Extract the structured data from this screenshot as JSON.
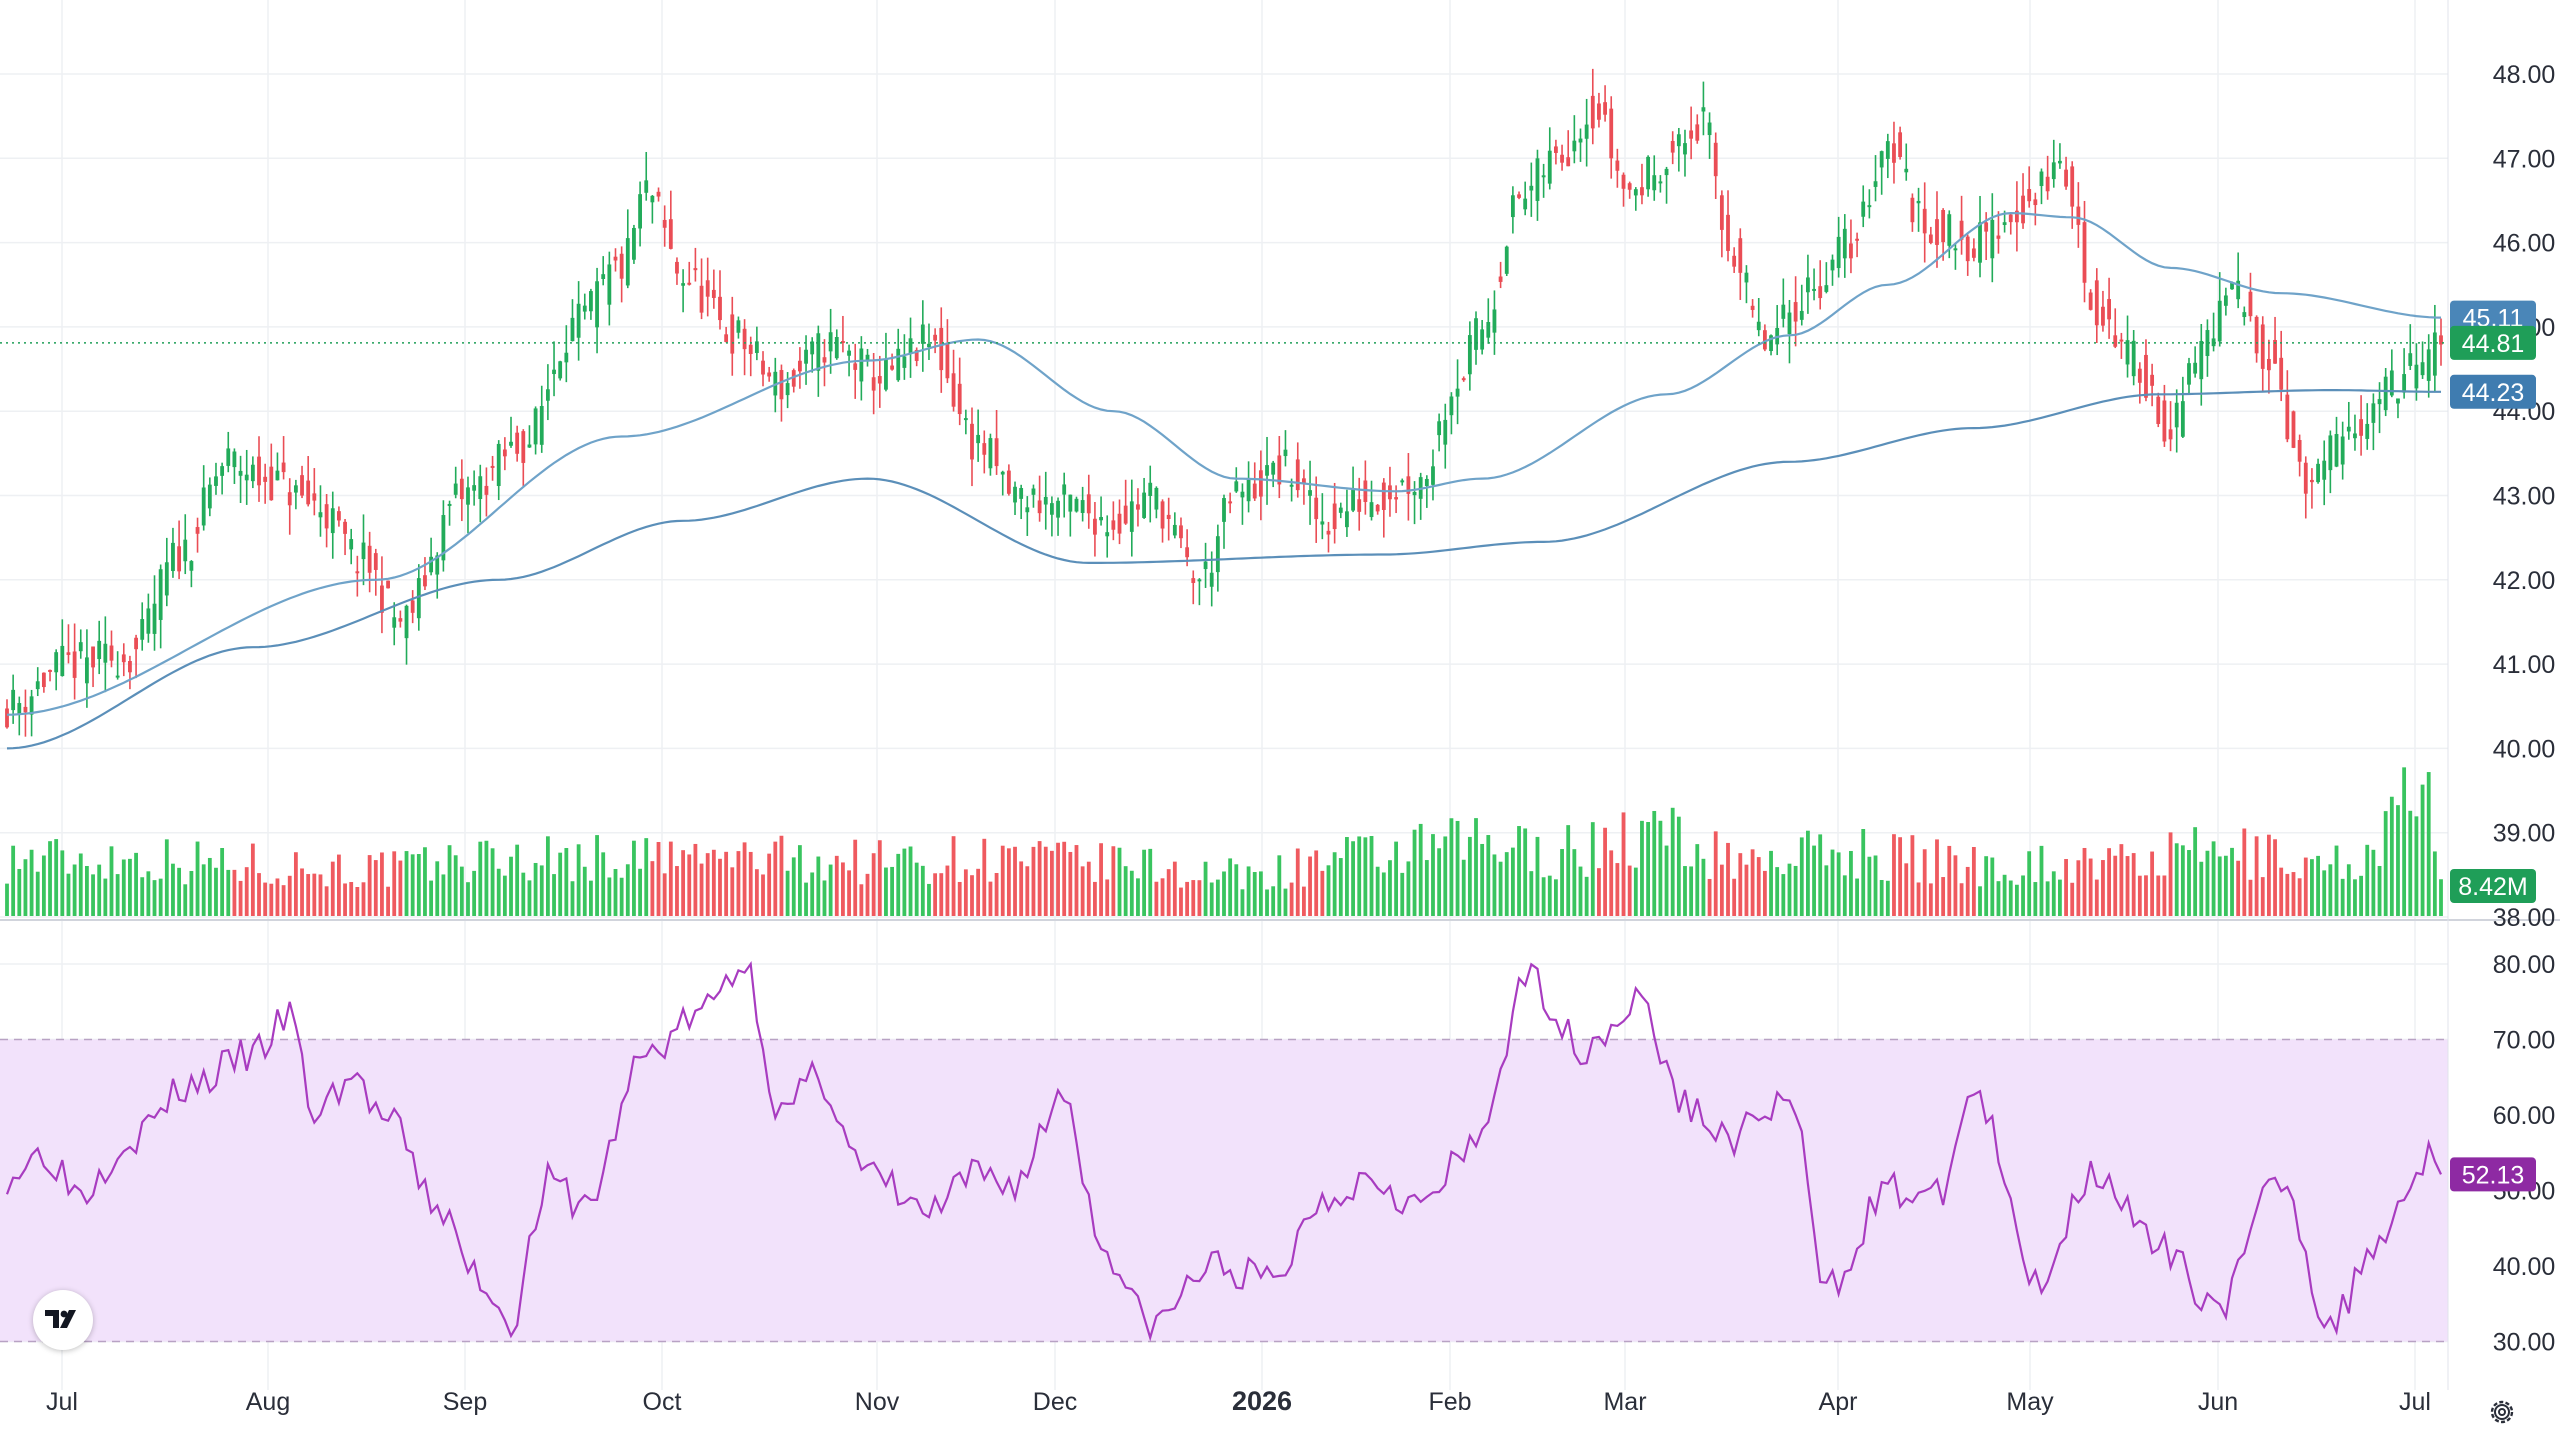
{
  "colors": {
    "up": "#22ab5a",
    "down": "#ea4d55",
    "ma_line": "#6fa3c9",
    "rsi_line": "#a83cc0",
    "rsi_band": "#f2e2fb",
    "grid": "#eef0f3",
    "axis_text": "#2a2e39",
    "last_price_badge": "#1f9e58",
    "ma_badge": "#4a86b8",
    "rsi_badge": "#8e2aa3"
  },
  "price_scale": {
    "ticks": [
      "48.00",
      "47.00",
      "46.00",
      "45.00",
      "44.00",
      "43.00",
      "42.00",
      "41.00",
      "40.00",
      "39.00",
      "38.00"
    ],
    "last_price": "44.81",
    "ma_short_value": "45.11",
    "ma_long_value": "44.23",
    "volume_label": "8.42M"
  },
  "rsi_scale": {
    "ticks": [
      "80.00",
      "70.00",
      "60.00",
      "50.00",
      "40.00",
      "30.00"
    ],
    "value_label": "52.13"
  },
  "time_axis": {
    "labels": [
      "Jul",
      "Aug",
      "Sep",
      "Oct",
      "Nov",
      "Dec",
      "2026",
      "Feb",
      "Mar",
      "Apr",
      "May",
      "Jun",
      "Jul"
    ]
  },
  "logo_icon": "tradingview-logo-icon",
  "settings_icon": "gear-icon",
  "chart_data": {
    "type": "candlestick",
    "series": [
      {
        "name": "price",
        "kind": "ohlc",
        "anchors": [
          [
            0,
            40.5
          ],
          [
            10,
            41.0
          ],
          [
            20,
            41.1
          ],
          [
            28,
            42.3
          ],
          [
            36,
            43.4
          ],
          [
            42,
            43.2
          ],
          [
            50,
            42.9
          ],
          [
            58,
            42.2
          ],
          [
            64,
            41.5
          ],
          [
            74,
            43.0
          ],
          [
            84,
            43.6
          ],
          [
            92,
            45.0
          ],
          [
            100,
            45.7
          ],
          [
            104,
            46.6
          ],
          [
            110,
            45.6
          ],
          [
            118,
            44.9
          ],
          [
            126,
            44.3
          ],
          [
            134,
            44.8
          ],
          [
            142,
            44.4
          ],
          [
            150,
            44.8
          ],
          [
            158,
            43.6
          ],
          [
            164,
            43.0
          ],
          [
            172,
            42.9
          ],
          [
            180,
            42.7
          ],
          [
            186,
            43.0
          ],
          [
            194,
            42.0
          ],
          [
            200,
            43.0
          ],
          [
            208,
            43.3
          ],
          [
            214,
            42.7
          ],
          [
            222,
            43.0
          ],
          [
            230,
            43.2
          ],
          [
            236,
            44.4
          ],
          [
            240,
            45.0
          ],
          [
            246,
            46.5
          ],
          [
            252,
            47.0
          ],
          [
            258,
            47.6
          ],
          [
            264,
            46.6
          ],
          [
            270,
            47.0
          ],
          [
            276,
            47.4
          ],
          [
            280,
            46.0
          ],
          [
            286,
            44.8
          ],
          [
            294,
            45.5
          ],
          [
            300,
            46.0
          ],
          [
            306,
            47.2
          ],
          [
            312,
            46.2
          ],
          [
            320,
            46.0
          ],
          [
            328,
            46.4
          ],
          [
            334,
            46.9
          ],
          [
            340,
            45.2
          ],
          [
            346,
            44.6
          ],
          [
            352,
            43.8
          ],
          [
            358,
            44.9
          ],
          [
            362,
            45.4
          ],
          [
            368,
            44.7
          ],
          [
            374,
            43.1
          ],
          [
            380,
            43.6
          ],
          [
            386,
            44.2
          ],
          [
            392,
            44.5
          ],
          [
            396,
            44.8
          ]
        ]
      },
      {
        "name": "ma_short",
        "kind": "line",
        "anchors": [
          [
            0,
            40.4
          ],
          [
            60,
            42.0
          ],
          [
            100,
            43.7
          ],
          [
            140,
            44.6
          ],
          [
            158,
            44.85
          ],
          [
            180,
            44.0
          ],
          [
            200,
            43.2
          ],
          [
            226,
            43.05
          ],
          [
            240,
            43.2
          ],
          [
            270,
            44.2
          ],
          [
            290,
            44.9
          ],
          [
            306,
            45.5
          ],
          [
            326,
            46.35
          ],
          [
            336,
            46.3
          ],
          [
            352,
            45.7
          ],
          [
            370,
            45.4
          ],
          [
            396,
            45.11
          ]
        ]
      },
      {
        "name": "ma_short_line",
        "kind": "line",
        "anchors": [
          [
            0,
            40.0
          ],
          [
            40,
            41.2
          ],
          [
            80,
            42.0
          ],
          [
            110,
            42.7
          ],
          [
            140,
            43.2
          ],
          [
            176,
            42.2
          ],
          [
            224,
            42.3
          ],
          [
            250,
            42.45
          ],
          [
            290,
            43.4
          ],
          [
            320,
            43.8
          ],
          [
            350,
            44.2
          ],
          [
            378,
            44.25
          ],
          [
            396,
            44.23
          ]
        ]
      },
      {
        "name": "volume",
        "kind": "bar",
        "anchors": [
          [
            0,
            1.0
          ],
          [
            20,
            1.0
          ],
          [
            40,
            0.9
          ],
          [
            60,
            0.8
          ],
          [
            80,
            1.0
          ],
          [
            100,
            1.0
          ],
          [
            120,
            1.0
          ],
          [
            140,
            0.95
          ],
          [
            160,
            1.0
          ],
          [
            180,
            0.9
          ],
          [
            200,
            0.7
          ],
          [
            220,
            1.0
          ],
          [
            240,
            1.25
          ],
          [
            250,
            1.1
          ],
          [
            270,
            1.4
          ],
          [
            280,
            1.0
          ],
          [
            300,
            1.1
          ],
          [
            320,
            0.9
          ],
          [
            340,
            0.9
          ],
          [
            360,
            1.1
          ],
          [
            380,
            0.9
          ],
          [
            394,
            2.1
          ],
          [
            396,
            0.65
          ]
        ]
      },
      {
        "name": "rsi",
        "kind": "line",
        "anchors": [
          [
            0,
            52
          ],
          [
            6,
            55
          ],
          [
            12,
            50
          ],
          [
            20,
            57
          ],
          [
            30,
            64
          ],
          [
            40,
            68
          ],
          [
            46,
            73
          ],
          [
            50,
            60
          ],
          [
            56,
            65
          ],
          [
            62,
            59
          ],
          [
            70,
            48
          ],
          [
            76,
            39
          ],
          [
            82,
            33
          ],
          [
            88,
            51
          ],
          [
            94,
            48
          ],
          [
            104,
            68
          ],
          [
            112,
            73
          ],
          [
            120,
            80
          ],
          [
            126,
            60
          ],
          [
            132,
            65
          ],
          [
            140,
            52
          ],
          [
            150,
            47
          ],
          [
            158,
            52
          ],
          [
            164,
            51
          ],
          [
            172,
            63
          ],
          [
            178,
            43
          ],
          [
            186,
            32
          ],
          [
            196,
            40
          ],
          [
            206,
            38
          ],
          [
            214,
            49
          ],
          [
            222,
            52
          ],
          [
            230,
            48
          ],
          [
            238,
            55
          ],
          [
            248,
            78
          ],
          [
            256,
            69
          ],
          [
            266,
            75
          ],
          [
            272,
            62
          ],
          [
            280,
            57
          ],
          [
            290,
            62
          ],
          [
            296,
            37
          ],
          [
            306,
            50
          ],
          [
            314,
            49
          ],
          [
            320,
            63
          ],
          [
            330,
            38
          ],
          [
            340,
            53
          ],
          [
            350,
            42
          ],
          [
            360,
            35
          ],
          [
            370,
            52
          ],
          [
            378,
            32
          ],
          [
            386,
            44
          ],
          [
            394,
            55
          ],
          [
            396,
            52.13
          ]
        ]
      }
    ],
    "x_count": 397,
    "y_range": [
      38.0,
      48.0
    ],
    "rsi_range": [
      30,
      80
    ],
    "rsi_band": [
      30,
      70
    ],
    "x_labels": [
      "Jul",
      "Aug",
      "Sep",
      "Oct",
      "Nov",
      "Dec",
      "2026",
      "Feb",
      "Mar",
      "Apr",
      "May",
      "Jun",
      "Jul"
    ],
    "grid": true,
    "legend": "none"
  }
}
